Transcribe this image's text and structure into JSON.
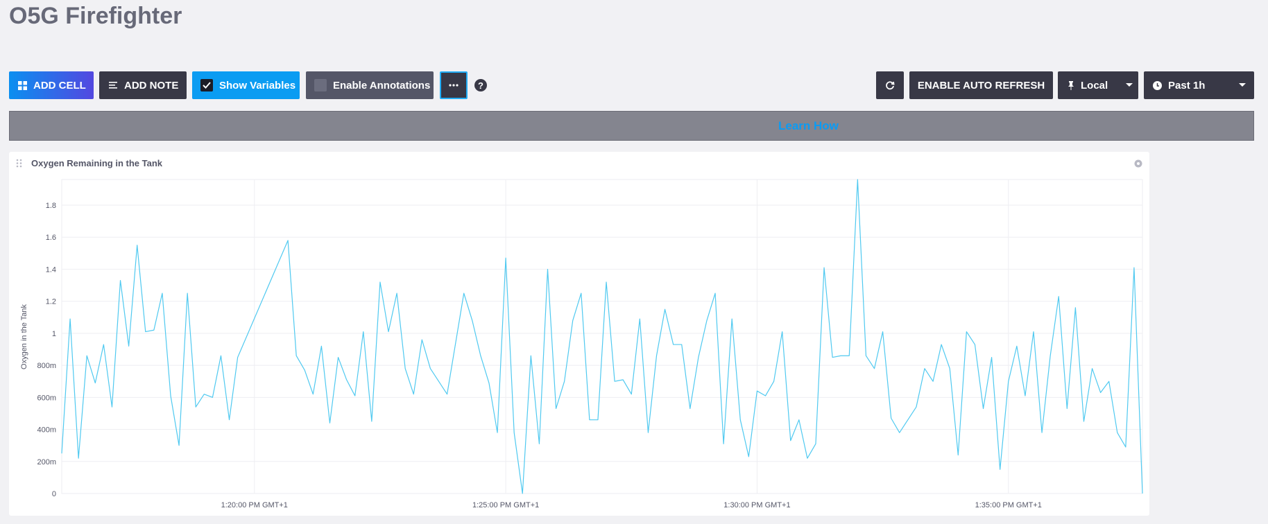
{
  "header": {
    "title": "O5G Firefighter"
  },
  "toolbar": {
    "add_cell": "ADD CELL",
    "add_note": "ADD NOTE",
    "show_variables": "Show Variables",
    "enable_annotations": "Enable Annotations",
    "auto_refresh": "ENABLE AUTO REFRESH",
    "timezone": "Local",
    "time_range": "Past 1h"
  },
  "banner": {
    "link": "Learn How"
  },
  "chart_data": {
    "type": "line",
    "title": "Oxygen Remaining in the Tank",
    "y_label": "Oxygen in the Tank",
    "color": "#4fc9f0",
    "grid": true,
    "x": [
      "1:16:10 PM",
      "1:16:20 PM",
      "1:16:30 PM",
      "1:16:40 PM",
      "1:16:50 PM",
      "1:17:00 PM",
      "1:17:10 PM",
      "1:17:20 PM",
      "1:17:30 PM",
      "1:17:40 PM",
      "1:17:50 PM",
      "1:18:00 PM",
      "1:18:10 PM",
      "1:18:20 PM",
      "1:18:30 PM",
      "1:18:40 PM",
      "1:18:50 PM",
      "1:19:00 PM",
      "1:19:10 PM",
      "1:19:20 PM",
      "1:19:30 PM",
      "1:19:40 PM",
      "1:20:40 PM",
      "1:20:50 PM",
      "1:21:00 PM",
      "1:21:10 PM",
      "1:21:20 PM",
      "1:21:30 PM",
      "1:21:40 PM",
      "1:21:50 PM",
      "1:22:00 PM",
      "1:22:10 PM",
      "1:22:20 PM",
      "1:22:30 PM",
      "1:22:40 PM",
      "1:22:50 PM",
      "1:23:00 PM",
      "1:23:10 PM",
      "1:23:20 PM",
      "1:23:30 PM",
      "1:23:50 PM",
      "1:24:10 PM",
      "1:24:20 PM",
      "1:24:30 PM",
      "1:24:40 PM",
      "1:24:50 PM",
      "1:25:00 PM",
      "1:25:10 PM",
      "1:25:20 PM",
      "1:25:30 PM",
      "1:25:40 PM",
      "1:25:50 PM",
      "1:26:00 PM",
      "1:26:10 PM",
      "1:26:20 PM",
      "1:26:30 PM",
      "1:26:40 PM",
      "1:26:50 PM",
      "1:27:00 PM",
      "1:27:10 PM",
      "1:27:20 PM",
      "1:27:30 PM",
      "1:27:40 PM",
      "1:27:50 PM",
      "1:28:00 PM",
      "1:28:10 PM",
      "1:28:20 PM",
      "1:28:30 PM",
      "1:28:40 PM",
      "1:28:50 PM",
      "1:29:00 PM",
      "1:29:10 PM",
      "1:29:20 PM",
      "1:29:30 PM",
      "1:29:40 PM",
      "1:29:50 PM",
      "1:30:00 PM",
      "1:30:10 PM",
      "1:30:20 PM",
      "1:30:30 PM",
      "1:30:40 PM",
      "1:30:50 PM",
      "1:31:00 PM",
      "1:31:10 PM",
      "1:31:20 PM",
      "1:31:30 PM",
      "1:31:40 PM",
      "1:31:50 PM",
      "1:32:00 PM",
      "1:32:10 PM",
      "1:32:20 PM",
      "1:32:30 PM",
      "1:32:40 PM",
      "1:32:50 PM",
      "1:33:10 PM",
      "1:33:20 PM",
      "1:33:30 PM",
      "1:33:40 PM",
      "1:33:50 PM",
      "1:34:00 PM",
      "1:34:10 PM",
      "1:34:20 PM",
      "1:34:30 PM",
      "1:34:40 PM",
      "1:34:50 PM",
      "1:35:00 PM",
      "1:35:10 PM",
      "1:35:20 PM",
      "1:35:30 PM",
      "1:35:40 PM",
      "1:35:50 PM",
      "1:36:00 PM",
      "1:36:10 PM",
      "1:36:20 PM",
      "1:36:30 PM",
      "1:36:40 PM",
      "1:36:50 PM",
      "1:37:00 PM",
      "1:37:10 PM",
      "1:37:20 PM",
      "1:37:30 PM",
      "1:37:40 PM"
    ],
    "values": [
      0.25,
      1.09,
      0.22,
      0.86,
      0.69,
      0.93,
      0.54,
      1.33,
      0.92,
      1.55,
      1.01,
      1.02,
      1.25,
      0.61,
      0.3,
      1.25,
      0.54,
      0.62,
      0.6,
      0.86,
      0.46,
      0.85,
      1.58,
      0.86,
      0.77,
      0.62,
      0.92,
      0.44,
      0.85,
      0.71,
      0.61,
      1.01,
      0.45,
      1.32,
      1.01,
      1.25,
      0.78,
      0.62,
      0.96,
      0.78,
      0.62,
      1.25,
      1.08,
      0.86,
      0.69,
      0.38,
      1.47,
      0.38,
      0.0,
      0.86,
      0.31,
      1.4,
      0.53,
      0.7,
      1.08,
      1.25,
      0.46,
      0.46,
      1.32,
      0.7,
      0.71,
      0.62,
      1.09,
      0.38,
      0.86,
      1.15,
      0.93,
      0.93,
      0.53,
      0.85,
      1.08,
      1.25,
      0.31,
      1.09,
      0.46,
      0.23,
      0.64,
      0.61,
      0.7,
      1.01,
      0.33,
      0.46,
      0.22,
      0.31,
      1.41,
      0.85,
      0.86,
      0.86,
      1.96,
      0.86,
      0.78,
      1.01,
      0.47,
      0.38,
      0.54,
      0.78,
      0.7,
      0.93,
      0.78,
      0.24,
      1.01,
      0.93,
      0.53,
      0.85,
      0.15,
      0.7,
      0.92,
      0.61,
      1.01,
      0.38,
      0.86,
      1.23,
      0.53,
      1.16,
      0.45,
      0.78,
      0.63,
      0.7,
      0.38,
      0.29,
      1.41,
      0.0
    ],
    "xlim": [
      "1:16:10 PM",
      "1:37:40 PM"
    ],
    "xticks": [
      {
        "value": "1:20:00 PM",
        "label": "1:20:00 PM GMT+1"
      },
      {
        "value": "1:25:00 PM",
        "label": "1:25:00 PM GMT+1"
      },
      {
        "value": "1:30:00 PM",
        "label": "1:30:00 PM GMT+1"
      },
      {
        "value": "1:35:00 PM",
        "label": "1:35:00 PM GMT+1"
      }
    ],
    "ylim": [
      0,
      1.96
    ],
    "yticks": [
      0,
      {
        "value": 0.2,
        "label": "200m"
      },
      {
        "value": 0.4,
        "label": "400m"
      },
      {
        "value": 0.6,
        "label": "600m"
      },
      {
        "value": 0.8,
        "label": "800m"
      },
      1,
      1.2,
      1.4,
      1.6,
      1.8
    ]
  }
}
